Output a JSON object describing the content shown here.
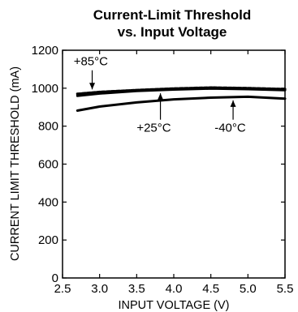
{
  "chart_data": {
    "type": "line",
    "title_line1": "Current-Limit Threshold",
    "title_line2": "vs. Input Voltage",
    "xlabel": "INPUT VOLTAGE (V)",
    "ylabel": "CURRENT LIMIT THRESHOLD (mA)",
    "xlim": [
      2.5,
      5.5
    ],
    "ylim": [
      0,
      1200
    ],
    "x_ticks": [
      "2.5",
      "3.0",
      "3.5",
      "4.0",
      "4.5",
      "5.0",
      "5.5"
    ],
    "y_ticks": [
      "0",
      "200",
      "400",
      "600",
      "800",
      "1000",
      "1200"
    ],
    "grid": false,
    "series": [
      {
        "name": "+85°C",
        "style": "dashed",
        "x": [
          2.7,
          3.0,
          3.5,
          4.0,
          4.5,
          5.0,
          5.5
        ],
        "y": [
          970,
          980,
          990,
          998,
          1003,
          1000,
          995
        ]
      },
      {
        "name": "+25°C",
        "style": "solid",
        "x": [
          2.7,
          3.0,
          3.5,
          4.0,
          4.5,
          5.0,
          5.5
        ],
        "y": [
          960,
          972,
          985,
          993,
          998,
          995,
          990
        ]
      },
      {
        "name": "-40°C",
        "style": "solid",
        "x": [
          2.7,
          3.0,
          3.5,
          4.0,
          4.5,
          5.0,
          5.5
        ],
        "y": [
          882,
          903,
          925,
          941,
          950,
          955,
          945
        ]
      }
    ],
    "annotations": [
      {
        "label": "+85°C",
        "series": 0,
        "arrow_x": 2.9,
        "text_x": 2.65,
        "text_y": 1120
      },
      {
        "label": "+25°C",
        "series": 1,
        "arrow_x": 3.82,
        "text_x": 3.5,
        "text_y": 770
      },
      {
        "label": "-40°C",
        "series": 2,
        "arrow_x": 4.8,
        "text_x": 4.55,
        "text_y": 770
      }
    ]
  }
}
